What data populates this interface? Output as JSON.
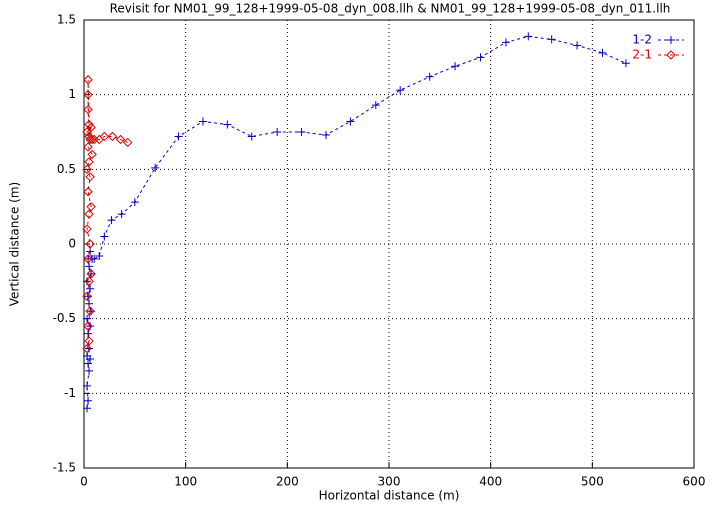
{
  "chart_data": {
    "type": "line",
    "title": "Revisit for NM01_99_128+1999-05-08_dyn_008.llh & NM01_99_128+1999-05-08_dyn_011.llh",
    "x_label": "Horizontal distance (m)",
    "y_label": "Vertical distance (m)",
    "xlim": [
      0,
      600
    ],
    "xticks": [
      0,
      100,
      200,
      300,
      400,
      500,
      600
    ],
    "ylim": [
      -1.5,
      1.5
    ],
    "yticks": [
      -1.5,
      -1,
      -0.5,
      0,
      0.5,
      1,
      1.5
    ],
    "grid": true,
    "legend": "top-right",
    "series": [
      {
        "name": "1-2",
        "color": "#0000cc",
        "marker": "plus",
        "x": [
          3,
          4,
          3,
          5,
          4,
          6,
          3,
          5,
          4,
          6,
          3,
          7,
          5,
          4,
          6,
          3,
          7,
          5,
          4,
          6,
          8,
          10,
          15,
          20,
          27,
          37,
          50,
          70,
          93,
          117,
          141,
          165,
          190,
          214,
          238,
          262,
          287,
          311,
          340,
          365,
          390,
          415,
          437,
          460,
          485,
          510,
          533
        ],
        "values": [
          -1.1,
          -1.05,
          -0.95,
          -0.85,
          -0.8,
          -0.77,
          -0.75,
          -0.7,
          -0.6,
          -0.55,
          -0.5,
          -0.45,
          -0.4,
          -0.35,
          -0.3,
          -0.25,
          -0.2,
          -0.15,
          -0.1,
          -0.05,
          -0.1,
          -0.1,
          -0.08,
          0.05,
          0.16,
          0.2,
          0.28,
          0.51,
          0.72,
          0.82,
          0.8,
          0.72,
          0.75,
          0.75,
          0.73,
          0.82,
          0.93,
          1.03,
          1.12,
          1.19,
          1.25,
          1.35,
          1.39,
          1.37,
          1.33,
          1.28,
          1.21
        ]
      },
      {
        "name": "2-1",
        "color": "#dd0000",
        "marker": "diamond",
        "x": [
          3,
          5,
          4,
          6,
          3,
          5,
          7,
          4,
          6,
          3,
          5,
          7,
          4,
          6,
          3,
          5,
          8,
          4,
          6,
          3,
          7,
          5,
          4,
          4,
          4,
          5,
          8,
          10,
          15,
          20,
          28,
          36,
          43
        ],
        "values": [
          -0.7,
          -0.65,
          -0.55,
          -0.45,
          -0.35,
          -0.25,
          -0.2,
          -0.1,
          0,
          0.1,
          0.2,
          0.25,
          0.35,
          0.45,
          0.5,
          0.55,
          0.6,
          0.65,
          0.7,
          0.75,
          0.78,
          0.72,
          0.9,
          1.0,
          1.1,
          0.8,
          0.7,
          0.7,
          0.7,
          0.72,
          0.72,
          0.7,
          0.68
        ]
      }
    ]
  }
}
